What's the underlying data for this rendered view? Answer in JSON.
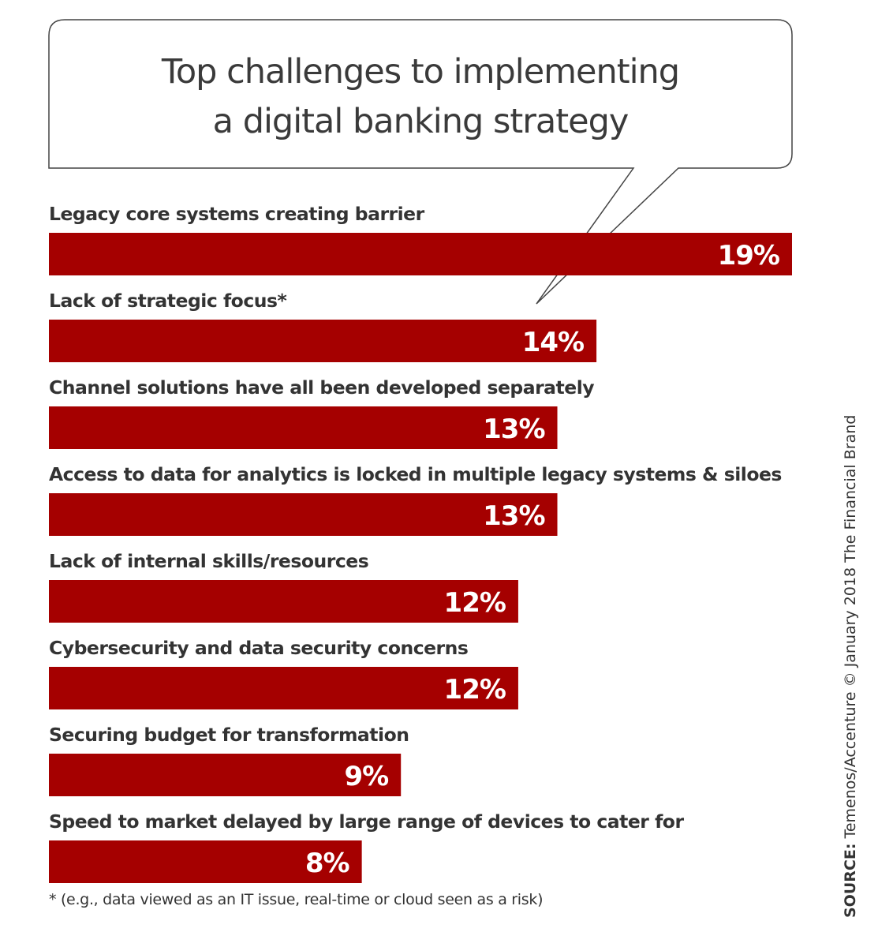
{
  "chart_data": {
    "type": "bar",
    "orientation": "horizontal",
    "title": "Top challenges to implementing a digital banking strategy",
    "title_lines": [
      "Top challenges to implementing",
      "a digital banking strategy"
    ],
    "categories": [
      "Legacy core systems creating barrier",
      "Lack of strategic focus*",
      "Channel solutions have all been developed separately",
      "Access to data for analytics is locked in multiple legacy systems & siloes",
      "Lack of internal skills/resources",
      "Cybersecurity and data security concerns",
      "Securing budget for transformation",
      "Speed to market delayed by large range of devices to cater for"
    ],
    "values": [
      19,
      14,
      13,
      13,
      12,
      12,
      9,
      8
    ],
    "value_labels": [
      "19%",
      "14%",
      "13%",
      "13%",
      "12%",
      "12%",
      "9%",
      "8%"
    ],
    "unit": "%",
    "xlim": [
      0,
      19
    ],
    "grid": false,
    "bar_color": "#a50000",
    "footnote": "* (e.g., data viewed as an IT issue, real-time or cloud seen as a risk)",
    "source_label": "SOURCE:",
    "source_text": "Temenos/Accenture © January 2018 The Financial Brand"
  }
}
